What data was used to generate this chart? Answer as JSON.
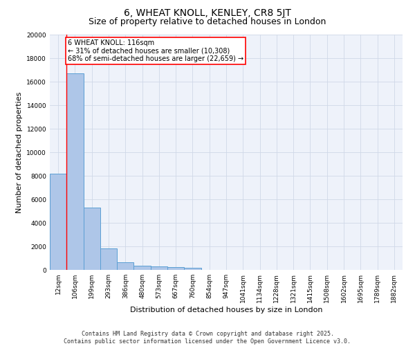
{
  "title": "6, WHEAT KNOLL, KENLEY, CR8 5JT",
  "subtitle": "Size of property relative to detached houses in London",
  "xlabel": "Distribution of detached houses by size in London",
  "ylabel": "Number of detached properties",
  "categories": [
    "12sqm",
    "106sqm",
    "199sqm",
    "293sqm",
    "386sqm",
    "480sqm",
    "573sqm",
    "667sqm",
    "760sqm",
    "854sqm",
    "947sqm",
    "1041sqm",
    "1134sqm",
    "1228sqm",
    "1321sqm",
    "1415sqm",
    "1508sqm",
    "1602sqm",
    "1695sqm",
    "1789sqm",
    "1882sqm"
  ],
  "values": [
    8200,
    16700,
    5300,
    1850,
    650,
    350,
    280,
    210,
    170,
    0,
    0,
    0,
    0,
    0,
    0,
    0,
    0,
    0,
    0,
    0,
    0
  ],
  "bar_color": "#aec6e8",
  "bar_edge_color": "#5a9fd4",
  "vline_color": "red",
  "annotation_text": "6 WHEAT KNOLL: 116sqm\n← 31% of detached houses are smaller (10,308)\n68% of semi-detached houses are larger (22,659) →",
  "annotation_box_color": "red",
  "annotation_text_color": "black",
  "annotation_bg_color": "white",
  "ylim": [
    0,
    20000
  ],
  "yticks": [
    0,
    2000,
    4000,
    6000,
    8000,
    10000,
    12000,
    14000,
    16000,
    18000,
    20000
  ],
  "grid_color": "#d0d8e8",
  "background_color": "#eef2fa",
  "footnote": "Contains HM Land Registry data © Crown copyright and database right 2025.\nContains public sector information licensed under the Open Government Licence v3.0.",
  "title_fontsize": 10,
  "subtitle_fontsize": 9,
  "annot_fontsize": 7,
  "tick_fontsize": 6.5,
  "ylabel_fontsize": 8,
  "xlabel_fontsize": 8,
  "footnote_fontsize": 6
}
